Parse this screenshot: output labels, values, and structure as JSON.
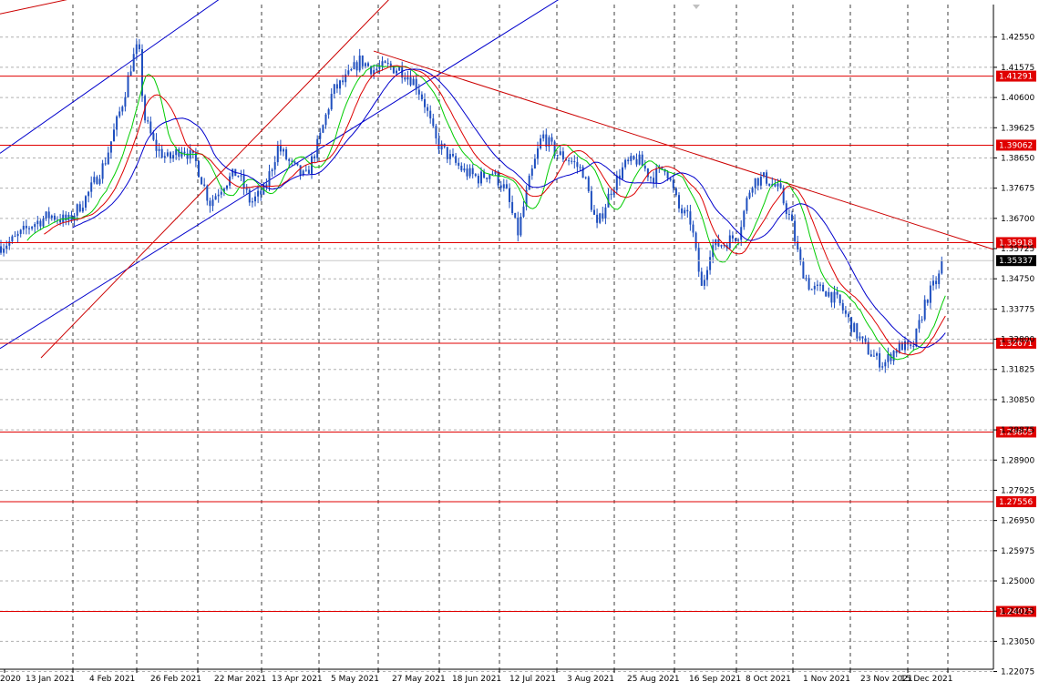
{
  "chart_data": {
    "type": "candlestick",
    "symbol_hint": "",
    "ylim": [
      1.2215,
      1.436
    ],
    "price_ticks": [
      "1.42550",
      "1.41575",
      "1.40600",
      "1.39625",
      "1.38650",
      "1.37675",
      "1.36700",
      "1.35725",
      "1.34750",
      "1.33775",
      "1.32800",
      "1.31825",
      "1.30850",
      "1.29875",
      "1.28900",
      "1.27925",
      "1.26950",
      "1.25975",
      "1.25000",
      "1.24025",
      "1.23050",
      "1.22075"
    ],
    "date_labels": [
      "2020",
      "13 Jan 2021",
      "4 Feb 2021",
      "26 Feb 2021",
      "22 Mar 2021",
      "13 Apr 2021",
      "5 May 2021",
      "27 May 2021",
      "18 Jun 2021",
      "12 Jul 2021",
      "3 Aug 2021",
      "25 Aug 2021",
      "16 Sep 2021",
      "8 Oct 2021",
      "1 Nov 2021",
      "23 Nov 2021",
      "15 Dec 2021"
    ],
    "current_price": "1.35337",
    "horizontal_levels": [
      {
        "label": "1.41291",
        "value": 1.41291
      },
      {
        "label": "1.39062",
        "value": 1.39062
      },
      {
        "label": "1.35918",
        "value": 1.35918
      },
      {
        "label": "1.32671",
        "value": 1.32671
      },
      {
        "label": "1.29805",
        "value": 1.29805
      },
      {
        "label": "1.27556",
        "value": 1.27556
      },
      {
        "label": "1.24015",
        "value": 1.24015
      }
    ],
    "close_path": [
      [
        0,
        1.358
      ],
      [
        15,
        1.36
      ],
      [
        35,
        1.365
      ],
      [
        55,
        1.368
      ],
      [
        75,
        1.366
      ],
      [
        95,
        1.374
      ],
      [
        115,
        1.385
      ],
      [
        135,
        1.405
      ],
      [
        145,
        1.418
      ],
      [
        152,
        1.423
      ],
      [
        158,
        1.4
      ],
      [
        170,
        1.39
      ],
      [
        185,
        1.386
      ],
      [
        200,
        1.39
      ],
      [
        215,
        1.385
      ],
      [
        230,
        1.372
      ],
      [
        245,
        1.378
      ],
      [
        260,
        1.382
      ],
      [
        275,
        1.372
      ],
      [
        290,
        1.376
      ],
      [
        305,
        1.39
      ],
      [
        320,
        1.384
      ],
      [
        335,
        1.38
      ],
      [
        350,
        1.392
      ],
      [
        365,
        1.408
      ],
      [
        380,
        1.412
      ],
      [
        395,
        1.418
      ],
      [
        410,
        1.415
      ],
      [
        425,
        1.416
      ],
      [
        440,
        1.415
      ],
      [
        455,
        1.411
      ],
      [
        465,
        1.405
      ],
      [
        478,
        1.392
      ],
      [
        495,
        1.386
      ],
      [
        510,
        1.382
      ],
      [
        525,
        1.38
      ],
      [
        540,
        1.382
      ],
      [
        555,
        1.376
      ],
      [
        568,
        1.362
      ],
      [
        580,
        1.378
      ],
      [
        595,
        1.394
      ],
      [
        610,
        1.388
      ],
      [
        625,
        1.386
      ],
      [
        640,
        1.382
      ],
      [
        655,
        1.364
      ],
      [
        670,
        1.376
      ],
      [
        685,
        1.384
      ],
      [
        700,
        1.386
      ],
      [
        715,
        1.38
      ],
      [
        730,
        1.384
      ],
      [
        745,
        1.37
      ],
      [
        758,
        1.366
      ],
      [
        770,
        1.344
      ],
      [
        780,
        1.358
      ],
      [
        795,
        1.359
      ],
      [
        810,
        1.362
      ],
      [
        825,
        1.379
      ],
      [
        840,
        1.38
      ],
      [
        855,
        1.376
      ],
      [
        868,
        1.366
      ],
      [
        878,
        1.352
      ],
      [
        890,
        1.344
      ],
      [
        905,
        1.344
      ],
      [
        920,
        1.34
      ],
      [
        935,
        1.332
      ],
      [
        948,
        1.326
      ],
      [
        960,
        1.322
      ],
      [
        970,
        1.32
      ],
      [
        980,
        1.324
      ],
      [
        990,
        1.326
      ],
      [
        1000,
        1.324
      ],
      [
        1008,
        1.332
      ],
      [
        1015,
        1.34
      ],
      [
        1022,
        1.344
      ],
      [
        1030,
        1.348
      ],
      [
        1036,
        1.3533
      ]
    ],
    "moving_averages": [
      {
        "color": "#00cc00",
        "period_hint": "fast"
      },
      {
        "color": "#dd0000",
        "period_hint": "medium"
      },
      {
        "color": "#0000cc",
        "period_hint": "slow"
      }
    ],
    "trendlines": [
      {
        "color": "#cc0000",
        "from": [
          0,
          1.433
        ],
        "to": [
          80,
          1.438
        ]
      },
      {
        "color": "#0000cc",
        "from": [
          0,
          1.388
        ],
        "to": [
          242,
          1.438
        ]
      },
      {
        "color": "#0000cc",
        "from": [
          0,
          1.325
        ],
        "to": [
          615,
          1.438
        ]
      },
      {
        "color": "#cc0000",
        "from": [
          45,
          1.322
        ],
        "to": [
          428,
          1.438
        ]
      },
      {
        "color": "#cc0000",
        "from": [
          410,
          1.421
        ],
        "to": [
          1090,
          1.357
        ]
      }
    ],
    "grid": true,
    "colors": {
      "candle": "#1f4fbf",
      "level_line": "#e00000",
      "level_label_bg": "#e00000",
      "current_label_bg": "#000000",
      "grid": "#b0b0b0",
      "axis": "#000000"
    }
  }
}
